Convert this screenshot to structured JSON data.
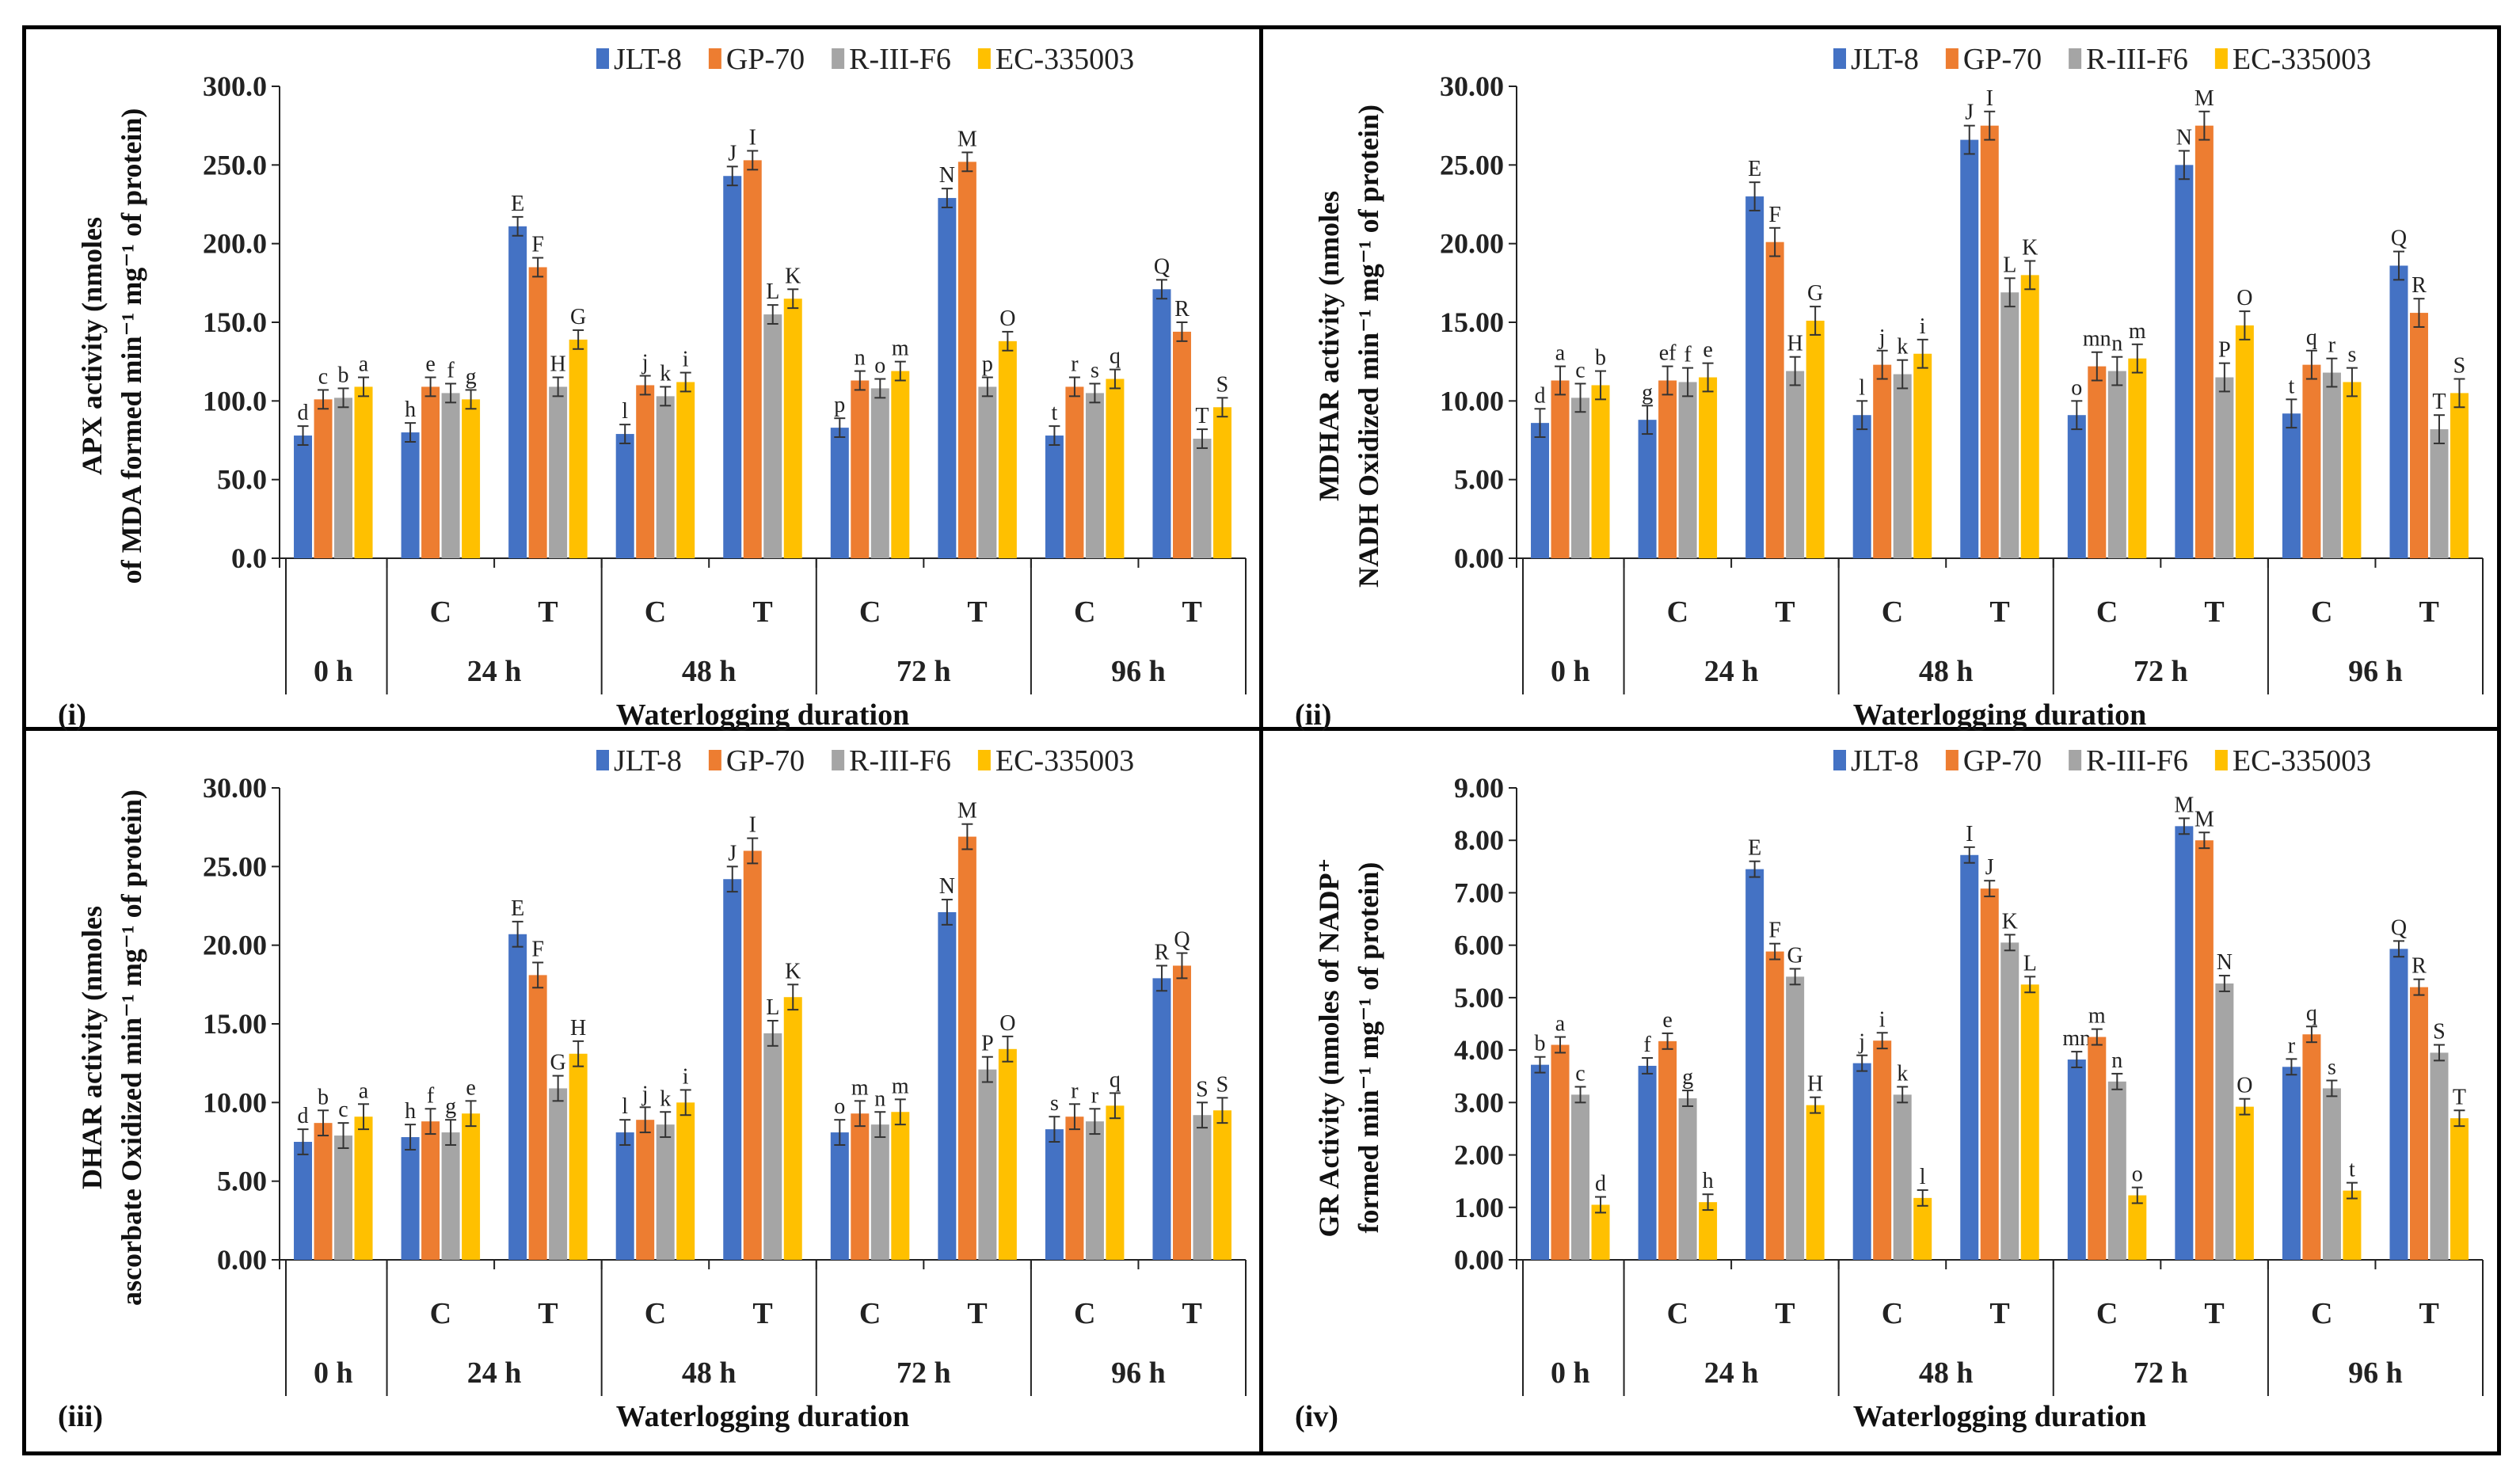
{
  "chart_data": [
    {
      "type": "bar",
      "panel_label": "(i)",
      "ylabel_lines": [
        "APX activity (nmoles",
        "of MDA formed min⁻¹ mg⁻¹ of protein)"
      ],
      "xlabel": "Waterlogging duration",
      "ylim": [
        0,
        300
      ],
      "ytick_step": 50,
      "tick_decimals": 1,
      "treatments": [
        "",
        "C",
        "T",
        "C",
        "T",
        "C",
        "T",
        "C",
        "T"
      ],
      "durations": [
        {
          "label": "0 h",
          "span": 1
        },
        {
          "label": "24 h",
          "span": 2
        },
        {
          "label": "48 h",
          "span": 2
        },
        {
          "label": "72 h",
          "span": 2
        },
        {
          "label": "96 h",
          "span": 2
        }
      ],
      "error": 6,
      "series": [
        {
          "name": "JLT-8",
          "color": "#4472C4",
          "values": [
            78,
            80,
            211,
            79,
            243,
            83,
            229,
            78,
            171
          ],
          "letters": [
            "d",
            "h",
            "E",
            "l",
            "J",
            "p",
            "N",
            "t",
            "Q"
          ]
        },
        {
          "name": "GP-70",
          "color": "#ED7D31",
          "values": [
            101,
            109,
            185,
            110,
            253,
            113,
            252,
            109,
            144
          ],
          "letters": [
            "c",
            "e",
            "F",
            "j",
            "I",
            "n",
            "M",
            "r",
            "R"
          ]
        },
        {
          "name": "R-III-F6",
          "color": "#A5A5A5",
          "values": [
            102,
            105,
            109,
            103,
            155,
            108,
            109,
            105,
            76
          ],
          "letters": [
            "b",
            "f",
            "H",
            "k",
            "L",
            "o",
            "p",
            "s",
            "T"
          ]
        },
        {
          "name": "EC-335003",
          "color": "#FFC000",
          "values": [
            109,
            101,
            139,
            112,
            165,
            119,
            138,
            114,
            96
          ],
          "letters": [
            "a",
            "g",
            "G",
            "i",
            "K",
            "m",
            "O",
            "q",
            "S"
          ]
        }
      ]
    },
    {
      "type": "bar",
      "panel_label": "(ii)",
      "ylabel_lines": [
        "MDHAR activity (nmoles",
        "NADH Oxidized min⁻¹ mg⁻¹ of protein)"
      ],
      "xlabel": "Waterlogging duration",
      "ylim": [
        0,
        30
      ],
      "ytick_step": 5,
      "tick_decimals": 2,
      "treatments": [
        "",
        "C",
        "T",
        "C",
        "T",
        "C",
        "T",
        "C",
        "T"
      ],
      "durations": [
        {
          "label": "0 h",
          "span": 1
        },
        {
          "label": "24 h",
          "span": 2
        },
        {
          "label": "48 h",
          "span": 2
        },
        {
          "label": "72 h",
          "span": 2
        },
        {
          "label": "96 h",
          "span": 2
        }
      ],
      "error": 0.9,
      "series": [
        {
          "name": "JLT-8",
          "color": "#4472C4",
          "values": [
            8.6,
            8.8,
            23.0,
            9.1,
            26.6,
            9.1,
            25.0,
            9.2,
            18.6
          ],
          "letters": [
            "d",
            "g",
            "E",
            "l",
            "J",
            "o",
            "N",
            "t",
            "Q"
          ]
        },
        {
          "name": "GP-70",
          "color": "#ED7D31",
          "values": [
            11.3,
            11.3,
            20.1,
            12.3,
            27.5,
            12.2,
            27.5,
            12.3,
            15.6
          ],
          "letters": [
            "a",
            "ef",
            "F",
            "j",
            "I",
            "mn",
            "M",
            "q",
            "R"
          ]
        },
        {
          "name": "R-III-F6",
          "color": "#A5A5A5",
          "values": [
            10.2,
            11.2,
            11.9,
            11.7,
            16.9,
            11.9,
            11.5,
            11.8,
            8.2
          ],
          "letters": [
            "c",
            "f",
            "H",
            "k",
            "L",
            "n",
            "P",
            "r",
            "T"
          ]
        },
        {
          "name": "EC-335003",
          "color": "#FFC000",
          "values": [
            11.0,
            11.5,
            15.1,
            13.0,
            18.0,
            12.7,
            14.8,
            11.2,
            10.5
          ],
          "letters": [
            "b",
            "e",
            "G",
            "i",
            "K",
            "m",
            "O",
            "s",
            "S"
          ]
        }
      ]
    },
    {
      "type": "bar",
      "panel_label": "(iii)",
      "ylabel_lines": [
        "DHAR activity (nmoles",
        "ascorbate Oxidized min⁻¹ mg⁻¹ of protein)"
      ],
      "xlabel": "Waterlogging duration",
      "ylim": [
        0,
        30
      ],
      "ytick_step": 5,
      "tick_decimals": 2,
      "treatments": [
        "",
        "C",
        "T",
        "C",
        "T",
        "C",
        "T",
        "C",
        "T"
      ],
      "durations": [
        {
          "label": "0 h",
          "span": 1
        },
        {
          "label": "24 h",
          "span": 2
        },
        {
          "label": "48 h",
          "span": 2
        },
        {
          "label": "72 h",
          "span": 2
        },
        {
          "label": "96 h",
          "span": 2
        }
      ],
      "error": 0.8,
      "series": [
        {
          "name": "JLT-8",
          "color": "#4472C4",
          "values": [
            7.5,
            7.8,
            20.7,
            8.1,
            24.2,
            8.1,
            22.1,
            8.3,
            17.9
          ],
          "letters": [
            "d",
            "h",
            "E",
            "l",
            "J",
            "o",
            "N",
            "s",
            "R"
          ]
        },
        {
          "name": "GP-70",
          "color": "#ED7D31",
          "values": [
            8.7,
            8.8,
            18.1,
            8.9,
            26.0,
            9.3,
            26.9,
            9.1,
            18.7
          ],
          "letters": [
            "b",
            "f",
            "F",
            "j",
            "I",
            "m",
            "M",
            "r",
            "Q"
          ]
        },
        {
          "name": "R-III-F6",
          "color": "#A5A5A5",
          "values": [
            7.9,
            8.1,
            10.9,
            8.6,
            14.4,
            8.6,
            12.1,
            8.8,
            9.2
          ],
          "letters": [
            "c",
            "g",
            "G",
            "k",
            "L",
            "n",
            "P",
            "r",
            "S"
          ]
        },
        {
          "name": "EC-335003",
          "color": "#FFC000",
          "values": [
            9.1,
            9.3,
            13.1,
            10.0,
            16.7,
            9.4,
            13.4,
            9.8,
            9.5
          ],
          "letters": [
            "a",
            "e",
            "H",
            "i",
            "K",
            "m",
            "O",
            "q",
            "S"
          ]
        }
      ]
    },
    {
      "type": "bar",
      "panel_label": "(iv)",
      "ylabel_lines": [
        "GR Activity (nmoles of NADP⁺",
        "formed min⁻¹ mg⁻¹ of protein)"
      ],
      "xlabel": "Waterlogging duration",
      "ylim": [
        0,
        9
      ],
      "ytick_step": 1,
      "tick_decimals": 2,
      "treatments": [
        "",
        "C",
        "T",
        "C",
        "T",
        "C",
        "T",
        "C",
        "T"
      ],
      "durations": [
        {
          "label": "0 h",
          "span": 1
        },
        {
          "label": "24 h",
          "span": 2
        },
        {
          "label": "48 h",
          "span": 2
        },
        {
          "label": "72 h",
          "span": 2
        },
        {
          "label": "96 h",
          "span": 2
        }
      ],
      "error": 0.15,
      "series": [
        {
          "name": "JLT-8",
          "color": "#4472C4",
          "values": [
            3.72,
            3.7,
            7.45,
            3.75,
            7.72,
            3.82,
            8.27,
            3.68,
            5.93
          ],
          "letters": [
            "b",
            "f",
            "E",
            "j",
            "I",
            "mn",
            "M",
            "r",
            "Q"
          ]
        },
        {
          "name": "GP-70",
          "color": "#ED7D31",
          "values": [
            4.1,
            4.17,
            5.88,
            4.18,
            7.08,
            4.25,
            8.0,
            4.3,
            5.2
          ],
          "letters": [
            "a",
            "e",
            "F",
            "i",
            "J",
            "m",
            "M",
            "q",
            "R"
          ]
        },
        {
          "name": "R-III-F6",
          "color": "#A5A5A5",
          "values": [
            3.15,
            3.08,
            5.4,
            3.15,
            6.05,
            3.4,
            5.27,
            3.27,
            3.95
          ],
          "letters": [
            "c",
            "g",
            "G",
            "k",
            "K",
            "n",
            "N",
            "s",
            "S"
          ]
        },
        {
          "name": "EC-335003",
          "color": "#FFC000",
          "values": [
            1.05,
            1.1,
            2.95,
            1.18,
            5.25,
            1.23,
            2.92,
            1.32,
            2.7
          ],
          "letters": [
            "d",
            "h",
            "H",
            "l",
            "L",
            "o",
            "O",
            "t",
            "T"
          ]
        }
      ]
    }
  ]
}
